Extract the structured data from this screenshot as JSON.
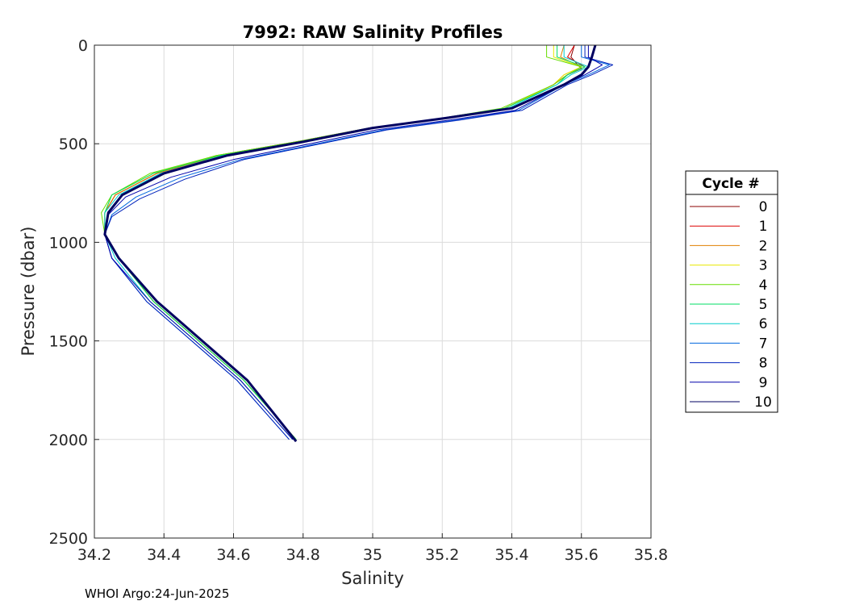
{
  "chart_data": {
    "type": "line",
    "title": "7992: RAW Salinity Profiles",
    "xlabel": "Salinity",
    "ylabel": "Pressure (dbar)",
    "xlim": [
      34.2,
      35.8
    ],
    "ylim": [
      0,
      2500
    ],
    "y_reversed": true,
    "grid": true,
    "x_ticks": [
      "34.2",
      "34.4",
      "34.6",
      "34.8",
      "35",
      "35.2",
      "35.4",
      "35.6",
      "35.8"
    ],
    "y_ticks": [
      "0",
      "500",
      "1000",
      "1500",
      "2000",
      "2500"
    ],
    "legend": {
      "title": "Cycle #",
      "placement": "right"
    },
    "footer": "WHOI Argo:24-Jun-2025",
    "series": [
      {
        "name": "0",
        "color": "#8b0000",
        "x": [
          35.58,
          35.57,
          35.6,
          35.56,
          35.52,
          35.38,
          35.2,
          34.99,
          34.78,
          34.55,
          34.38,
          34.26,
          34.23,
          34.23,
          34.27,
          34.37,
          34.5,
          34.63,
          34.78
        ],
        "y": [
          0,
          60,
          120,
          150,
          200,
          320,
          370,
          420,
          490,
          560,
          650,
          760,
          850,
          960,
          1080,
          1300,
          1500,
          1700,
          2000
        ]
      },
      {
        "name": "1",
        "color": "#dd0000",
        "x": [
          35.58,
          35.56,
          35.61,
          35.56,
          35.52,
          35.38,
          35.2,
          34.99,
          34.79,
          34.56,
          34.38,
          34.26,
          34.23,
          34.23,
          34.27,
          34.37,
          34.5,
          34.63,
          34.78
        ],
        "y": [
          0,
          60,
          110,
          150,
          200,
          320,
          370,
          420,
          490,
          560,
          650,
          760,
          850,
          960,
          1080,
          1300,
          1500,
          1700,
          2000
        ]
      },
      {
        "name": "2",
        "color": "#e08000",
        "x": [
          35.55,
          35.54,
          35.6,
          35.55,
          35.52,
          35.38,
          35.2,
          34.99,
          34.79,
          34.56,
          34.38,
          34.26,
          34.23,
          34.23,
          34.27,
          34.37,
          34.5,
          34.63,
          34.78
        ],
        "y": [
          0,
          60,
          110,
          150,
          200,
          320,
          370,
          420,
          490,
          560,
          650,
          760,
          850,
          960,
          1080,
          1300,
          1500,
          1700,
          2000
        ]
      },
      {
        "name": "3",
        "color": "#e8e800",
        "x": [
          35.52,
          35.52,
          35.6,
          35.55,
          35.52,
          35.38,
          35.2,
          34.99,
          34.79,
          34.55,
          34.37,
          34.25,
          34.23,
          34.23,
          34.27,
          34.37,
          34.5,
          34.63,
          34.78
        ],
        "y": [
          0,
          60,
          110,
          150,
          200,
          320,
          370,
          420,
          490,
          560,
          650,
          760,
          850,
          960,
          1080,
          1300,
          1500,
          1700,
          2000
        ]
      },
      {
        "name": "4",
        "color": "#66dd00",
        "x": [
          35.5,
          35.5,
          35.6,
          35.56,
          35.52,
          35.37,
          35.2,
          34.99,
          34.78,
          34.55,
          34.36,
          34.25,
          34.22,
          34.23,
          34.27,
          34.37,
          34.5,
          34.63,
          34.78
        ],
        "y": [
          0,
          60,
          110,
          150,
          200,
          320,
          370,
          420,
          490,
          560,
          650,
          760,
          850,
          960,
          1080,
          1300,
          1500,
          1700,
          2000
        ]
      },
      {
        "name": "5",
        "color": "#00dd66",
        "x": [
          35.53,
          35.53,
          35.61,
          35.56,
          35.53,
          35.38,
          35.2,
          34.99,
          34.79,
          34.56,
          34.37,
          34.25,
          34.23,
          34.23,
          34.27,
          34.37,
          34.5,
          34.63,
          34.78
        ],
        "y": [
          0,
          60,
          110,
          150,
          200,
          320,
          370,
          420,
          490,
          560,
          650,
          760,
          850,
          960,
          1080,
          1300,
          1500,
          1700,
          2000
        ]
      },
      {
        "name": "6",
        "color": "#00cccc",
        "x": [
          35.55,
          35.55,
          35.62,
          35.57,
          35.53,
          35.39,
          35.21,
          35.0,
          34.8,
          34.57,
          34.39,
          34.27,
          34.23,
          34.23,
          34.26,
          34.36,
          34.49,
          34.62,
          34.77
        ],
        "y": [
          0,
          60,
          110,
          150,
          200,
          320,
          370,
          420,
          490,
          560,
          650,
          760,
          850,
          960,
          1080,
          1300,
          1500,
          1700,
          2000
        ]
      },
      {
        "name": "7",
        "color": "#0066dd",
        "x": [
          35.6,
          35.6,
          35.68,
          35.62,
          35.55,
          35.42,
          35.24,
          35.03,
          34.84,
          34.62,
          34.45,
          34.32,
          34.25,
          34.23,
          34.25,
          34.35,
          34.48,
          34.61,
          34.76
        ],
        "y": [
          0,
          60,
          100,
          150,
          200,
          330,
          380,
          430,
          500,
          580,
          670,
          770,
          860,
          960,
          1080,
          1300,
          1500,
          1700,
          2000
        ]
      },
      {
        "name": "8",
        "color": "#0022bb",
        "x": [
          35.61,
          35.61,
          35.69,
          35.63,
          35.56,
          35.43,
          35.25,
          35.04,
          34.85,
          34.63,
          34.46,
          34.33,
          34.25,
          34.23,
          34.25,
          34.35,
          34.48,
          34.61,
          34.76
        ],
        "y": [
          0,
          60,
          100,
          150,
          200,
          330,
          380,
          430,
          500,
          580,
          680,
          780,
          870,
          960,
          1080,
          1300,
          1500,
          1700,
          2000
        ]
      },
      {
        "name": "9",
        "color": "#0000aa",
        "x": [
          35.62,
          35.62,
          35.66,
          35.61,
          35.55,
          35.41,
          35.22,
          35.01,
          34.82,
          34.6,
          34.42,
          34.29,
          34.24,
          34.23,
          34.25,
          34.36,
          34.49,
          34.62,
          34.77
        ],
        "y": [
          0,
          60,
          100,
          150,
          200,
          330,
          380,
          430,
          500,
          580,
          670,
          770,
          860,
          960,
          1080,
          1300,
          1500,
          1700,
          2000
        ]
      },
      {
        "name": "10",
        "color": "#000060",
        "x": [
          35.64,
          35.63,
          35.62,
          35.6,
          35.55,
          35.4,
          35.21,
          35.0,
          34.8,
          34.58,
          34.4,
          34.28,
          34.24,
          34.23,
          34.27,
          34.38,
          34.51,
          34.64,
          34.78
        ],
        "y": [
          0,
          60,
          110,
          150,
          200,
          320,
          370,
          420,
          490,
          560,
          650,
          760,
          850,
          960,
          1080,
          1300,
          1500,
          1700,
          2010
        ]
      }
    ]
  }
}
